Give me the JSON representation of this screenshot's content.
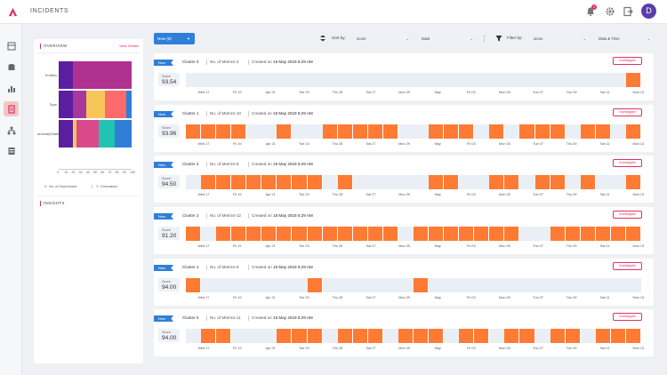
{
  "app": {
    "title": "INCIDENTS",
    "avatar_letter": "D",
    "notification_count": "2"
  },
  "overview": {
    "heading": "OVERVIEW",
    "link": "View Details",
    "bars": [
      {
        "label": "Entities",
        "segments": [
          {
            "value": 20,
            "color": "#5b1ea1"
          },
          {
            "value": 80,
            "color": "#b0318f"
          }
        ]
      },
      {
        "label": "Type",
        "segments": [
          {
            "value": 20,
            "color": "#5b1ea1"
          },
          {
            "value": 18,
            "color": "#a8389b"
          },
          {
            "value": 25,
            "color": "#f7c65a"
          },
          {
            "value": 30,
            "color": "#ff6b6b"
          },
          {
            "value": 7,
            "color": "#2f7fd8"
          }
        ]
      },
      {
        "label": "anomalyState",
        "segments": [
          {
            "value": 20,
            "color": "#5b1ea1"
          },
          {
            "value": 5,
            "color": "#f7c65a"
          },
          {
            "value": 30,
            "color": "#d84a8a"
          },
          {
            "value": 22,
            "color": "#22c3b3"
          },
          {
            "value": 23,
            "color": "#2f7fd8"
          }
        ]
      }
    ],
    "ticks": [
      "0",
      "10",
      "20",
      "30",
      "40",
      "50",
      "60",
      "70",
      "80",
      "90",
      "100"
    ],
    "footer_x": "X : No. of Occurrences",
    "footer_y": "Y : Dimensions",
    "insights_heading": "INSIGHTS"
  },
  "toolbar": {
    "new_button": "New (6)",
    "sort_label": "Sort by:",
    "sort_field": "score",
    "sort_order": "Data",
    "filter_label": "Filter by:",
    "filter_field": "score",
    "filter_range": "Data & Time"
  },
  "timeline_dates": [
    "Wed 17",
    "Fri 19",
    "Apr 21",
    "Tue 23",
    "Thu 25",
    "Sat 27",
    "Mon 29",
    "May",
    "Fri 03",
    "Mon 05",
    "Tue 07",
    "Thu 09",
    "Sat 11",
    "Mon 13"
  ],
  "clusters": [
    {
      "tag": "New",
      "name": "Cluster 0",
      "metrics": "No. of Metrics-2",
      "created_prefix": "Created on",
      "created_date": "15 May 2019 5:29 AM",
      "score_label": "Score",
      "score": "93.54",
      "investigate": "Investigate",
      "active_slots": [
        29
      ]
    },
    {
      "tag": "New",
      "name": "Cluster 1",
      "metrics": "No. of Metrics-10",
      "created_prefix": "Created on",
      "created_date": "15 May 2019 5:29 AM",
      "score_label": "Score",
      "score": "93.96",
      "investigate": "Investigate",
      "active_slots": [
        0,
        1,
        2,
        3,
        6,
        9,
        10,
        11,
        12,
        13,
        16,
        17,
        18,
        20,
        22,
        23,
        24,
        26,
        27,
        29
      ]
    },
    {
      "tag": "New",
      "name": "Cluster 2",
      "metrics": "No. of Metrics-8",
      "created_prefix": "Created on",
      "created_date": "15 May 2019 5:29 AM",
      "score_label": "Score",
      "score": "94.50",
      "investigate": "Investigate",
      "active_slots": [
        1,
        2,
        3,
        4,
        5,
        6,
        7,
        8,
        10,
        16,
        17,
        20,
        21,
        23,
        24,
        26,
        29
      ]
    },
    {
      "tag": "New",
      "name": "Cluster 3",
      "metrics": "No. of Metrics-12",
      "created_prefix": "Created on",
      "created_date": "15 May 2019 5:29 AM",
      "score_label": "Score",
      "score": "91.20",
      "investigate": "Investigate",
      "active_slots": [
        0,
        2,
        3,
        4,
        5,
        6,
        7,
        8,
        9,
        10,
        11,
        12,
        13,
        15,
        16,
        17,
        18,
        19,
        20,
        21,
        24,
        25,
        26,
        27,
        28,
        29
      ]
    },
    {
      "tag": "New",
      "name": "Cluster 4",
      "metrics": "No. of Metrics-9",
      "created_prefix": "Created on",
      "created_date": "15 May 2019 5:29 AM",
      "score_label": "Score",
      "score": "94.00",
      "investigate": "Investigate",
      "active_slots": [
        0,
        8,
        15
      ]
    },
    {
      "tag": "New",
      "name": "Cluster 5",
      "metrics": "No. of Metrics-11",
      "created_prefix": "Created on",
      "created_date": "15 May 2019 5:29 AM",
      "score_label": "Score",
      "score": "94.00",
      "investigate": "Investigate",
      "active_slots": [
        1,
        2,
        6,
        7,
        8,
        10,
        11,
        12,
        14,
        15,
        16,
        18,
        19,
        21,
        22,
        24,
        25,
        27,
        28,
        29
      ]
    }
  ],
  "colors": {
    "accent": "#e0325f",
    "primary": "#2f7fd8",
    "timeline_active": "#ff7a33",
    "timeline_bg": "#eaeff6"
  },
  "rail_icons": [
    "dashboard-icon",
    "database-icon",
    "bar-chart-icon",
    "incidents-icon",
    "hierarchy-icon",
    "list-icon"
  ]
}
